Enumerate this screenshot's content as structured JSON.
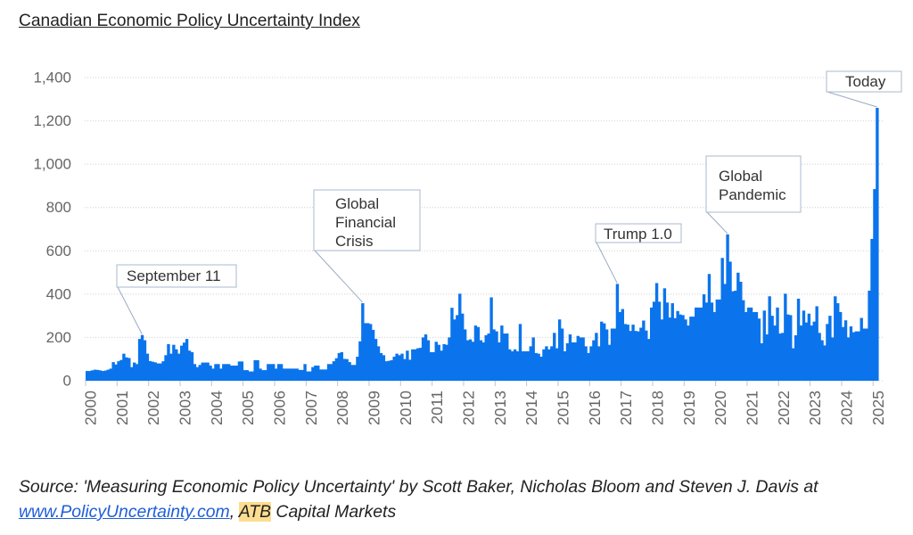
{
  "page": {
    "source": {
      "text": "Source: 'Measuring Economic Policy Uncertainty' by Scott Baker, Nicholas Bloom and Steven J. Davis at",
      "link_text": "www.PolicyUncertainty.com",
      "separator": ", ",
      "highlight_text": "ATB",
      "suffix": " Capital Markets"
    },
    "colors": {
      "bar": "#0b74ec",
      "link": "#1f5fd8",
      "highlight": "#fcdd90",
      "annotation_border": "#a9b9cf"
    }
  },
  "chart_data": {
    "type": "bar",
    "title": "Canadian Economic Policy Uncertainty Index",
    "xlabel": "",
    "ylabel": "",
    "x_start": 2000,
    "periods_per_year": 12,
    "ylim": [
      0,
      1400
    ],
    "grid": true,
    "y_ticks": [
      0,
      200,
      400,
      600,
      800,
      1000,
      1200,
      1400
    ],
    "y_tick_labels": [
      "0",
      "200",
      "400",
      "600",
      "800",
      "1,000",
      "1,200",
      "1,400"
    ],
    "x_ticks": [
      2000,
      2001,
      2002,
      2003,
      2004,
      2005,
      2006,
      2007,
      2008,
      2009,
      2010,
      2011,
      2012,
      2013,
      2014,
      2015,
      2016,
      2017,
      2018,
      2019,
      2020,
      2021,
      2022,
      2023,
      2024,
      2025
    ],
    "x_tick_labels": [
      "2000",
      "2001",
      "2002",
      "2003",
      "2004",
      "2005",
      "2006",
      "2007",
      "2008",
      "2009",
      "2010",
      "2011",
      "2012",
      "2013",
      "2014",
      "2015",
      "2016",
      "2017",
      "2018",
      "2019",
      "2020",
      "2021",
      "2022",
      "2023",
      "2024",
      "2025"
    ],
    "values": [
      45,
      45,
      48,
      51,
      50,
      48,
      45,
      47,
      51,
      56,
      86,
      75,
      90,
      96,
      125,
      108,
      105,
      63,
      84,
      77,
      193,
      211,
      187,
      125,
      91,
      88,
      85,
      80,
      80,
      90,
      118,
      169,
      125,
      166,
      145,
      125,
      162,
      176,
      193,
      139,
      132,
      77,
      63,
      73,
      84,
      84,
      84,
      70,
      56,
      77,
      77,
      56,
      77,
      77,
      77,
      70,
      70,
      70,
      89,
      89,
      49,
      49,
      43,
      43,
      95,
      95,
      56,
      49,
      49,
      77,
      77,
      77,
      56,
      77,
      77,
      56,
      56,
      56,
      56,
      56,
      56,
      50,
      50,
      77,
      43,
      43,
      63,
      70,
      70,
      52,
      52,
      52,
      77,
      77,
      90,
      104,
      128,
      132,
      101,
      100,
      86,
      73,
      73,
      111,
      182,
      358,
      266,
      266,
      262,
      235,
      193,
      159,
      128,
      118,
      90,
      92,
      95,
      111,
      125,
      118,
      125,
      100,
      139,
      97,
      145,
      145,
      150,
      152,
      200,
      214,
      187,
      132,
      132,
      180,
      166,
      139,
      169,
      166,
      200,
      337,
      283,
      303,
      402,
      310,
      237,
      187,
      191,
      180,
      255,
      248,
      187,
      177,
      210,
      218,
      385,
      237,
      228,
      177,
      255,
      218,
      218,
      145,
      136,
      145,
      136,
      262,
      136,
      136,
      136,
      159,
      200,
      128,
      125,
      111,
      145,
      159,
      145,
      159,
      221,
      150,
      283,
      241,
      136,
      173,
      214,
      177,
      177,
      207,
      200,
      200,
      159,
      128,
      159,
      187,
      221,
      159,
      273,
      265,
      237,
      166,
      241,
      241,
      447,
      317,
      331,
      262,
      259,
      230,
      259,
      230,
      228,
      245,
      278,
      232,
      193,
      338,
      365,
      451,
      365,
      283,
      427,
      361,
      292,
      358,
      289,
      322,
      306,
      303,
      283,
      255,
      296,
      296,
      338,
      338,
      338,
      399,
      361,
      493,
      361,
      317,
      375,
      375,
      567,
      447,
      676,
      550,
      413,
      416,
      499,
      457,
      372,
      317,
      338,
      338,
      317,
      317,
      287,
      173,
      324,
      214,
      390,
      300,
      255,
      338,
      218,
      221,
      402,
      306,
      303,
      150,
      210,
      379,
      255,
      324,
      269,
      310,
      255,
      273,
      344,
      221,
      187,
      163,
      262,
      300,
      200,
      390,
      358,
      317,
      248,
      279,
      200,
      251,
      224,
      228,
      228,
      290,
      241,
      241,
      416,
      655,
      885,
      1260
    ],
    "annotations": [
      {
        "lines": [
          "September 11"
        ],
        "target_index": 21
      },
      {
        "lines": [
          "Global",
          "Financial",
          "Crisis"
        ],
        "target_index": 105
      },
      {
        "lines": [
          "Trump 1.0"
        ],
        "target_index": 202
      },
      {
        "lines": [
          "Global",
          "Pandemic"
        ],
        "target_index": 244
      },
      {
        "lines": [
          "Today"
        ],
        "target_index": 301
      }
    ]
  }
}
